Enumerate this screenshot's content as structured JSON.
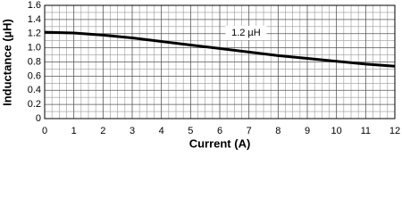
{
  "chart_data": {
    "type": "line",
    "x_label": "Current (A)",
    "y_label": "Inductance (µH)",
    "annotation": "1.2 µH",
    "x": [
      0,
      1,
      2,
      3,
      4,
      5,
      6,
      7,
      8,
      9,
      10,
      11,
      12
    ],
    "series": [
      {
        "color": "#000000",
        "values": [
          1.22,
          1.21,
          1.18,
          1.14,
          1.09,
          1.04,
          0.99,
          0.94,
          0.89,
          0.85,
          0.81,
          0.77,
          0.74
        ]
      }
    ],
    "xlim": [
      0,
      12
    ],
    "xticks": [
      0,
      1,
      2,
      3,
      4,
      5,
      6,
      7,
      8,
      9,
      10,
      11,
      12
    ],
    "ylim": [
      0,
      1.6
    ],
    "yticks": [
      0,
      0.2,
      0.4,
      0.6,
      0.8,
      {
        "value": 1,
        "label": "1.0"
      },
      1.2,
      1.4,
      1.6
    ],
    "grid": true
  }
}
